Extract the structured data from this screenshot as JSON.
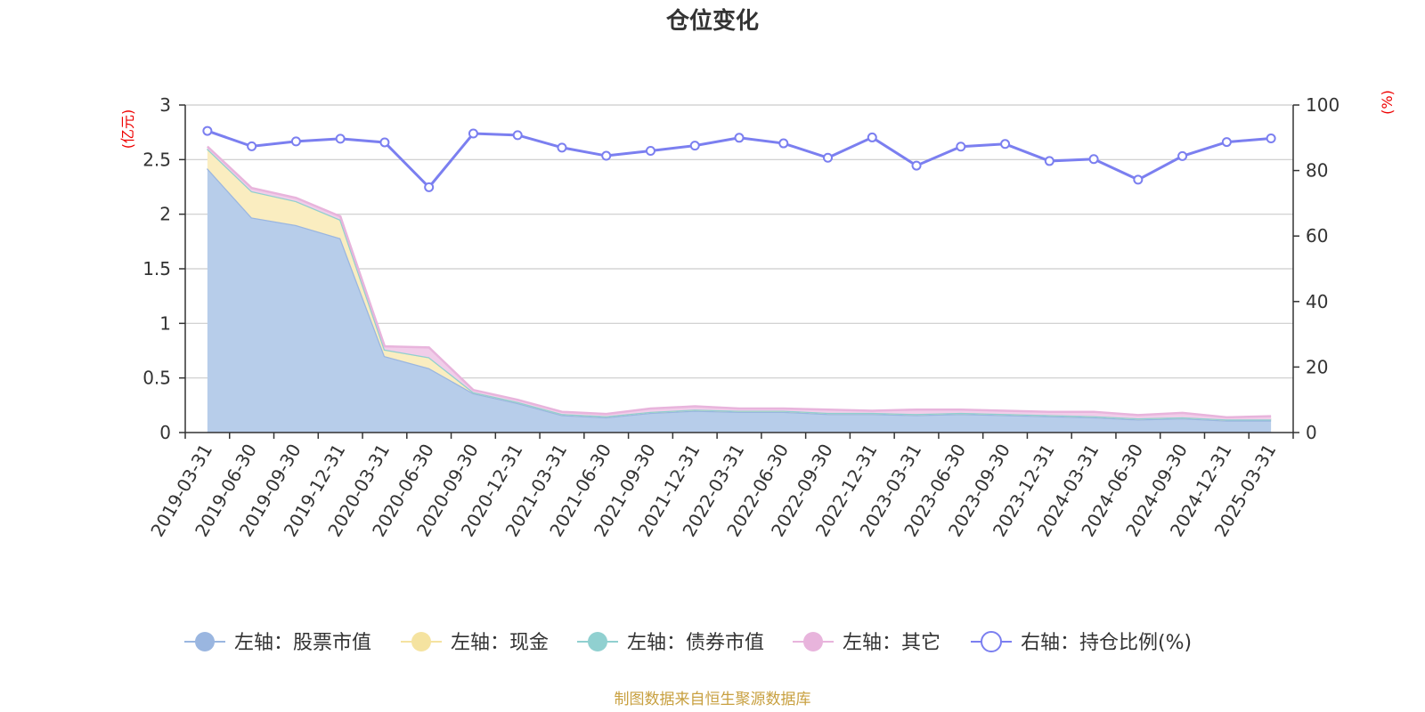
{
  "chart_data": {
    "type": "area",
    "title": "仓位变化",
    "left_axis_unit": "(亿元)",
    "right_axis_unit": "(%)",
    "left_ylim": [
      0,
      3
    ],
    "left_ticks": [
      "0",
      "0.5",
      "1",
      "1.5",
      "2",
      "2.5",
      "3"
    ],
    "right_ylim": [
      0,
      100
    ],
    "right_ticks": [
      "0",
      "20",
      "40",
      "60",
      "80",
      "100"
    ],
    "grid": true,
    "legend_position": "bottom",
    "categories": [
      "2019-03-31",
      "2019-06-30",
      "2019-09-30",
      "2019-12-31",
      "2020-03-31",
      "2020-06-30",
      "2020-09-30",
      "2020-12-31",
      "2021-03-31",
      "2021-06-30",
      "2021-09-30",
      "2021-12-31",
      "2022-03-31",
      "2022-06-30",
      "2022-09-30",
      "2022-12-31",
      "2023-03-31",
      "2023-06-30",
      "2023-09-30",
      "2023-12-31",
      "2024-03-31",
      "2024-06-30",
      "2024-09-30",
      "2024-12-31",
      "2025-03-31"
    ],
    "series": [
      {
        "name": "左轴：股票市值",
        "axis": "left",
        "kind": "stacked-area",
        "color": "#9ab6e0",
        "fill": "#b7cdea",
        "values": [
          2.42,
          1.97,
          1.9,
          1.78,
          0.7,
          0.59,
          0.36,
          0.27,
          0.16,
          0.14,
          0.18,
          0.2,
          0.19,
          0.19,
          0.17,
          0.17,
          0.16,
          0.17,
          0.16,
          0.15,
          0.14,
          0.12,
          0.13,
          0.11,
          0.11
        ]
      },
      {
        "name": "左轴：现金",
        "axis": "left",
        "kind": "stacked-area",
        "color": "#f5e3a0",
        "fill": "#faedc0",
        "values": [
          0.18,
          0.24,
          0.22,
          0.17,
          0.06,
          0.1,
          0.01,
          0.01,
          0.01,
          0.01,
          0.01,
          0.01,
          0.01,
          0.01,
          0.01,
          0.01,
          0.01,
          0.01,
          0.01,
          0.01,
          0.01,
          0.01,
          0.01,
          0.01,
          0.01
        ]
      },
      {
        "name": "左轴：债券市值",
        "axis": "left",
        "kind": "stacked-area",
        "color": "#90d0d0",
        "fill": "#b0e0e0",
        "values": [
          0,
          0,
          0,
          0,
          0,
          0,
          0,
          0,
          0,
          0,
          0,
          0,
          0,
          0,
          0,
          0,
          0,
          0,
          0,
          0,
          0,
          0,
          0,
          0,
          0
        ]
      },
      {
        "name": "左轴：其它",
        "axis": "left",
        "kind": "stacked-area",
        "color": "#e8b4dc",
        "fill": "#f1cde9",
        "values": [
          0.02,
          0.03,
          0.03,
          0.03,
          0.03,
          0.09,
          0.02,
          0.02,
          0.02,
          0.02,
          0.03,
          0.03,
          0.02,
          0.02,
          0.03,
          0.02,
          0.04,
          0.03,
          0.03,
          0.03,
          0.04,
          0.03,
          0.04,
          0.02,
          0.03
        ]
      },
      {
        "name": "右轴：持仓比例(%)",
        "axis": "right",
        "kind": "line",
        "color": "#7b7ff0",
        "values": [
          92.1,
          87.4,
          88.9,
          89.7,
          88.6,
          74.9,
          91.3,
          90.8,
          87.0,
          84.5,
          86.0,
          87.6,
          90.0,
          88.3,
          83.9,
          90.1,
          81.5,
          87.3,
          88.1,
          82.9,
          83.5,
          77.2,
          84.4,
          88.7,
          89.8
        ]
      }
    ]
  },
  "source_note": "制图数据来自恒生聚源数据库"
}
